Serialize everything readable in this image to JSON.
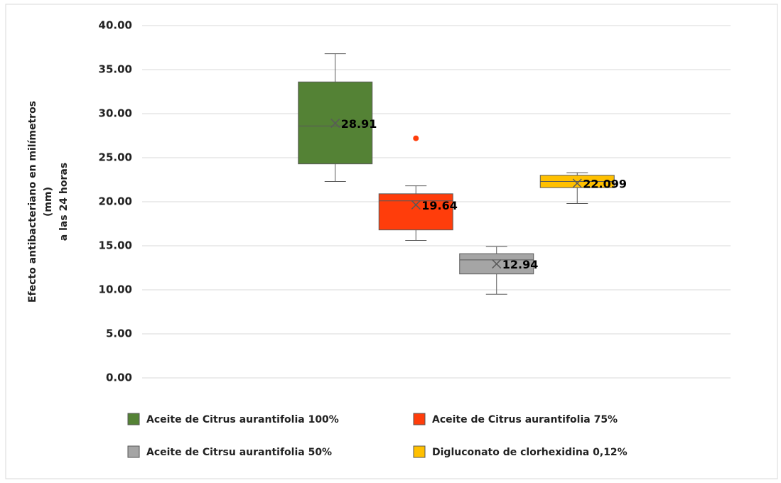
{
  "chart_data": {
    "type": "box",
    "y_label": [
      "Efecto antibacteriano en milímetros",
      "(mm)",
      "a las 24 horas"
    ],
    "ylim": [
      0,
      40
    ],
    "yticks": [
      {
        "value": 0,
        "label": "0.00"
      },
      {
        "value": 5,
        "label": "5.00"
      },
      {
        "value": 10,
        "label": "10.00"
      },
      {
        "value": 15,
        "label": "15.00"
      },
      {
        "value": 20,
        "label": "20.00"
      },
      {
        "value": 25,
        "label": "25.00"
      },
      {
        "value": 30,
        "label": "30.00"
      },
      {
        "value": 35,
        "label": "35.00"
      },
      {
        "value": 40,
        "label": "40.00"
      }
    ],
    "grid": true,
    "legend": "bottom",
    "series": [
      {
        "name": "Aceite de Citrus aurantifolia 100%",
        "color": "#548235",
        "min": 22.3,
        "q1": 24.3,
        "median": 28.6,
        "q3": 33.6,
        "max": 36.8,
        "mean": 28.91,
        "outliers": []
      },
      {
        "name": "Aceite de Citrus aurantifolia 75%",
        "color": "#ff3d0b",
        "min": 15.6,
        "q1": 16.8,
        "median": 20.1,
        "q3": 20.9,
        "max": 21.8,
        "mean": 19.64,
        "outliers": [
          27.2
        ]
      },
      {
        "name": "Aceite de Citrsu aurantifolia 50%",
        "color": "#a5a5a5",
        "min": 9.5,
        "q1": 11.8,
        "median": 13.4,
        "q3": 14.1,
        "max": 14.9,
        "mean": 12.94,
        "outliers": []
      },
      {
        "name": "Digluconato de clorhexidina 0,12%",
        "color": "#ffc000",
        "min": 19.8,
        "q1": 21.6,
        "median": 22.3,
        "q3": 23.0,
        "max": 23.3,
        "mean": 22.099,
        "outliers": []
      }
    ]
  }
}
